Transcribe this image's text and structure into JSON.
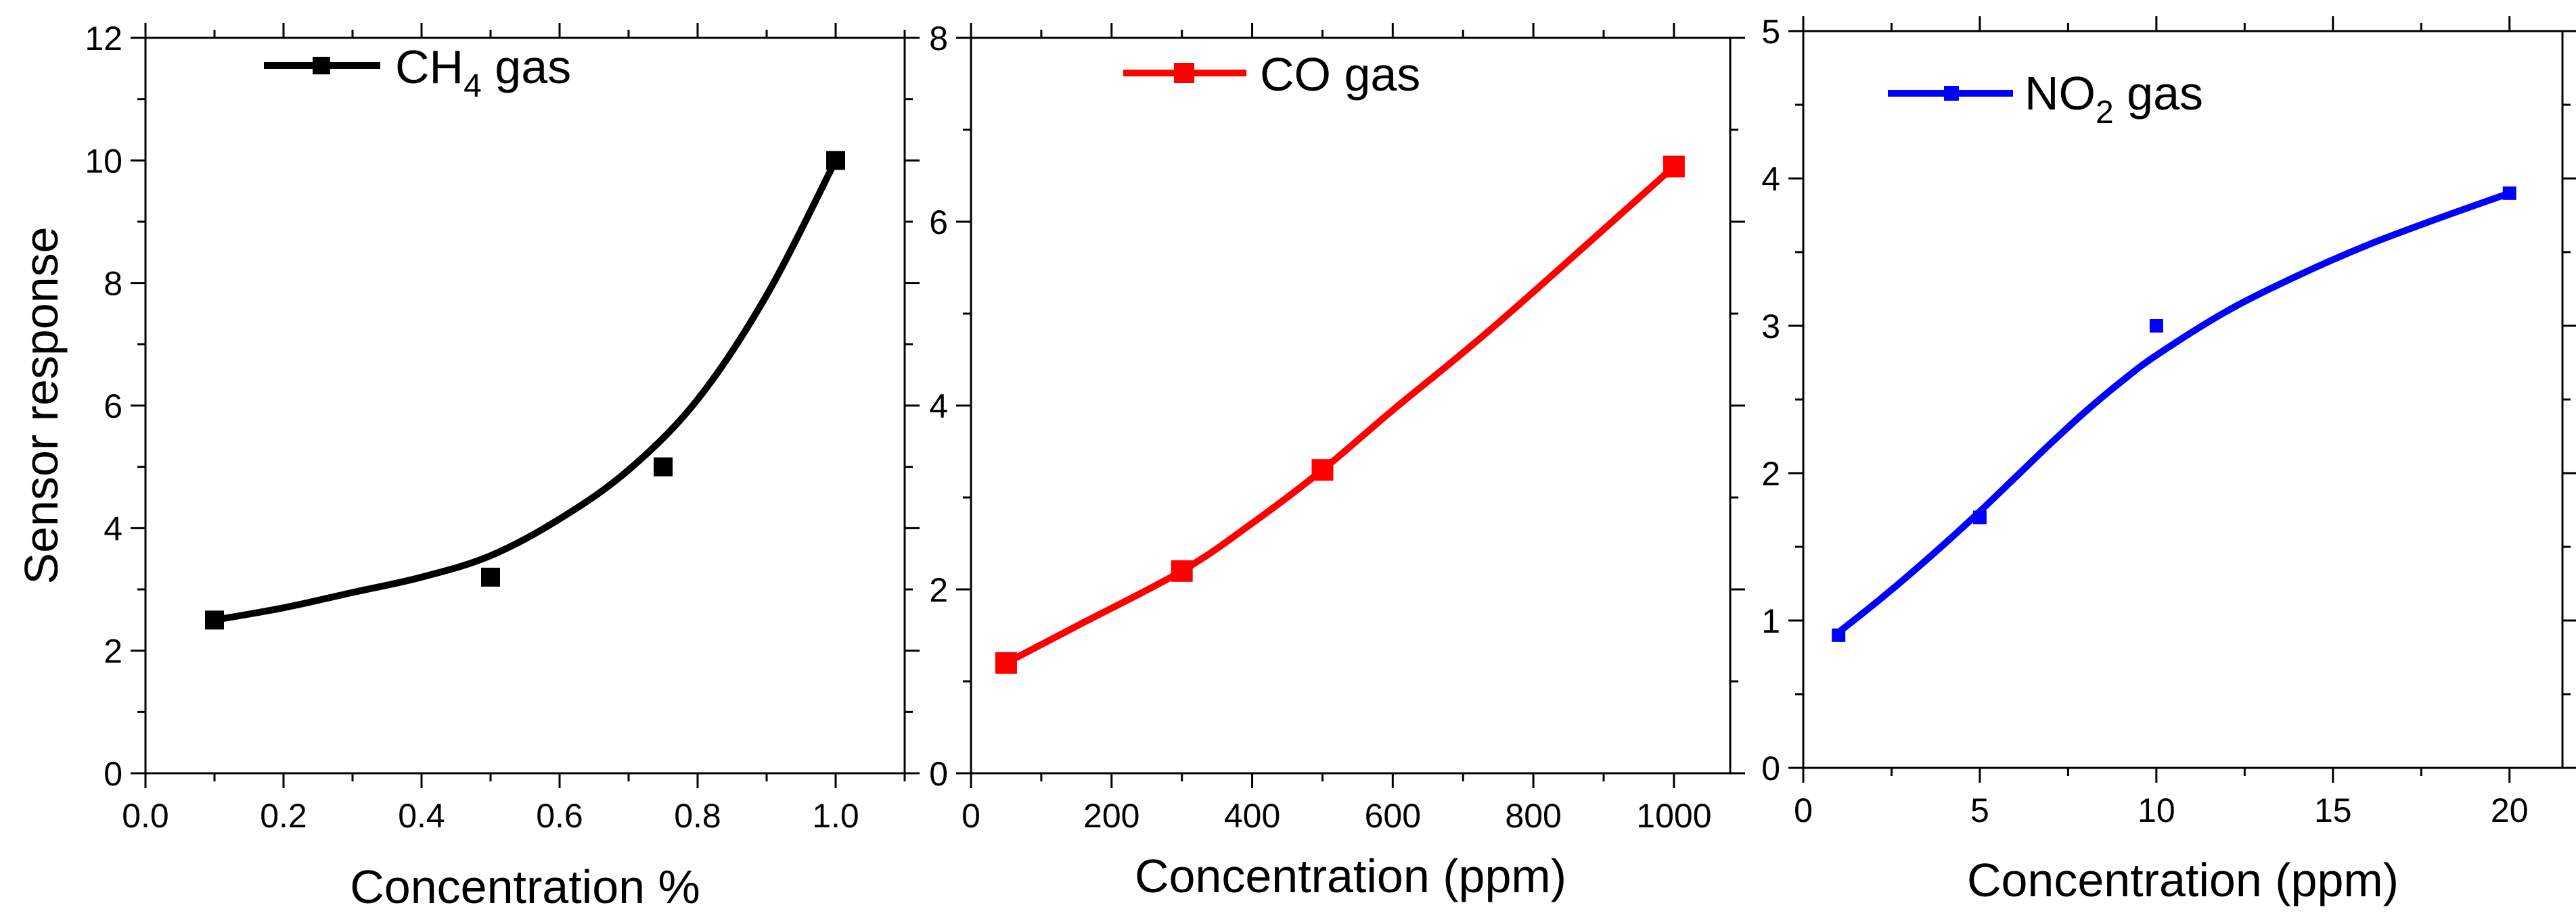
{
  "chart_data": [
    {
      "type": "line",
      "name": "ch4",
      "title": "",
      "xlabel": "Concentration %",
      "ylabel": "Sensor response",
      "xlim": [
        0,
        1.1
      ],
      "ylim": [
        0,
        12
      ],
      "xticks": [
        0.0,
        0.2,
        0.4,
        0.6,
        0.8,
        1.0
      ],
      "xtick_labels": [
        "0.0",
        "0.2",
        "0.4",
        "0.6",
        "0.8",
        "1.0"
      ],
      "yticks": [
        0,
        2,
        4,
        6,
        8,
        10,
        12
      ],
      "ytick_labels": [
        "0",
        "2",
        "4",
        "6",
        "8",
        "10",
        "12"
      ],
      "color": "#000000",
      "legend": {
        "label": "CH",
        "subscript": "4",
        "suffix": " gas",
        "location": "top-left"
      },
      "points": {
        "x": [
          0.1,
          0.5,
          0.75,
          1.0
        ],
        "y": [
          2.5,
          3.2,
          5.0,
          10.0
        ]
      },
      "fit": {
        "x": [
          0.1,
          0.2,
          0.3,
          0.4,
          0.5,
          0.6,
          0.7,
          0.8,
          0.9,
          1.0
        ],
        "y": [
          2.5,
          2.7,
          2.95,
          3.2,
          3.55,
          4.15,
          4.95,
          6.1,
          7.8,
          10.0
        ]
      }
    },
    {
      "type": "line",
      "name": "co",
      "title": "",
      "xlabel": "Concentration (ppm)",
      "ylabel": "",
      "xlim": [
        0,
        1080
      ],
      "ylim": [
        0,
        8
      ],
      "xticks": [
        0,
        200,
        400,
        600,
        800,
        1000
      ],
      "xtick_labels": [
        "0",
        "200",
        "400",
        "600",
        "800",
        "1000"
      ],
      "yticks": [
        0,
        2,
        4,
        6,
        8
      ],
      "ytick_labels": [
        "0",
        "2",
        "4",
        "6",
        "8"
      ],
      "color": "#ff0000",
      "legend": {
        "label": "CO",
        "subscript": "",
        "suffix": " gas",
        "location": "top-left"
      },
      "points": {
        "x": [
          50,
          300,
          500,
          1000
        ],
        "y": [
          1.2,
          2.2,
          3.3,
          6.6
        ]
      },
      "fit": {
        "x": [
          50,
          150,
          300,
          400,
          500,
          600,
          750,
          1000
        ],
        "y": [
          1.2,
          1.6,
          2.2,
          2.72,
          3.3,
          3.95,
          4.9,
          6.6
        ]
      }
    },
    {
      "type": "line",
      "name": "no2",
      "title": "",
      "xlabel": "Concentration (ppm)",
      "ylabel": "",
      "xlim": [
        0,
        21.5
      ],
      "ylim": [
        0,
        5
      ],
      "xticks": [
        0,
        5,
        10,
        15,
        20
      ],
      "xtick_labels": [
        "0",
        "5",
        "10",
        "15",
        "20"
      ],
      "yticks": [
        0,
        1,
        2,
        3,
        4,
        5
      ],
      "ytick_labels": [
        "0",
        "1",
        "2",
        "3",
        "4",
        "5"
      ],
      "color": "#0000ff",
      "legend": {
        "label": "NO",
        "subscript": "2",
        "suffix": " gas",
        "location": "top-left"
      },
      "points": {
        "x": [
          1,
          5,
          10,
          20
        ],
        "y": [
          0.9,
          1.7,
          3.0,
          3.9
        ]
      },
      "fit": {
        "x": [
          1,
          2,
          3,
          4,
          5,
          6,
          7,
          8,
          9,
          10,
          12,
          14,
          16,
          18,
          20
        ],
        "y": [
          0.92,
          1.11,
          1.31,
          1.52,
          1.74,
          1.97,
          2.2,
          2.42,
          2.62,
          2.8,
          3.1,
          3.34,
          3.55,
          3.73,
          3.9
        ]
      }
    }
  ]
}
